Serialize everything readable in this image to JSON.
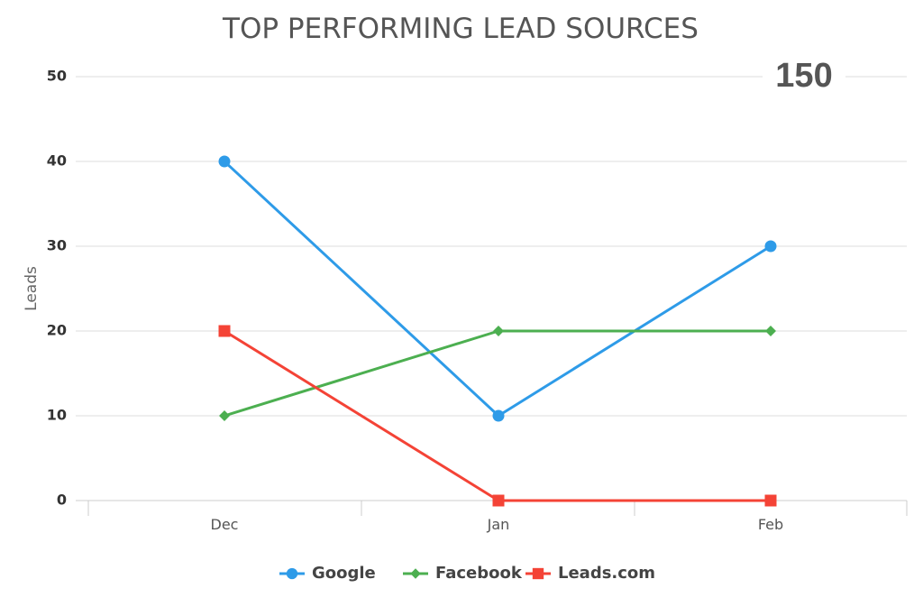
{
  "chart_data": {
    "type": "line",
    "title": "TOP PERFORMING LEAD SOURCES",
    "total": "150",
    "ylabel": "Leads",
    "xlabel": "",
    "categories": [
      "Dec",
      "Jan",
      "Feb"
    ],
    "ylim": [
      0,
      50
    ],
    "yticks": [
      0,
      10,
      20,
      30,
      40,
      50
    ],
    "grid": true,
    "legend_position": "bottom",
    "series": [
      {
        "name": "Google",
        "values": [
          40,
          10,
          30
        ],
        "color": "#2e9be8",
        "marker": "circle"
      },
      {
        "name": "Facebook",
        "values": [
          10,
          20,
          20
        ],
        "color": "#4caf50",
        "marker": "diamond"
      },
      {
        "name": "Leads.com",
        "values": [
          20,
          0,
          0
        ],
        "color": "#f44336",
        "marker": "square"
      }
    ]
  }
}
